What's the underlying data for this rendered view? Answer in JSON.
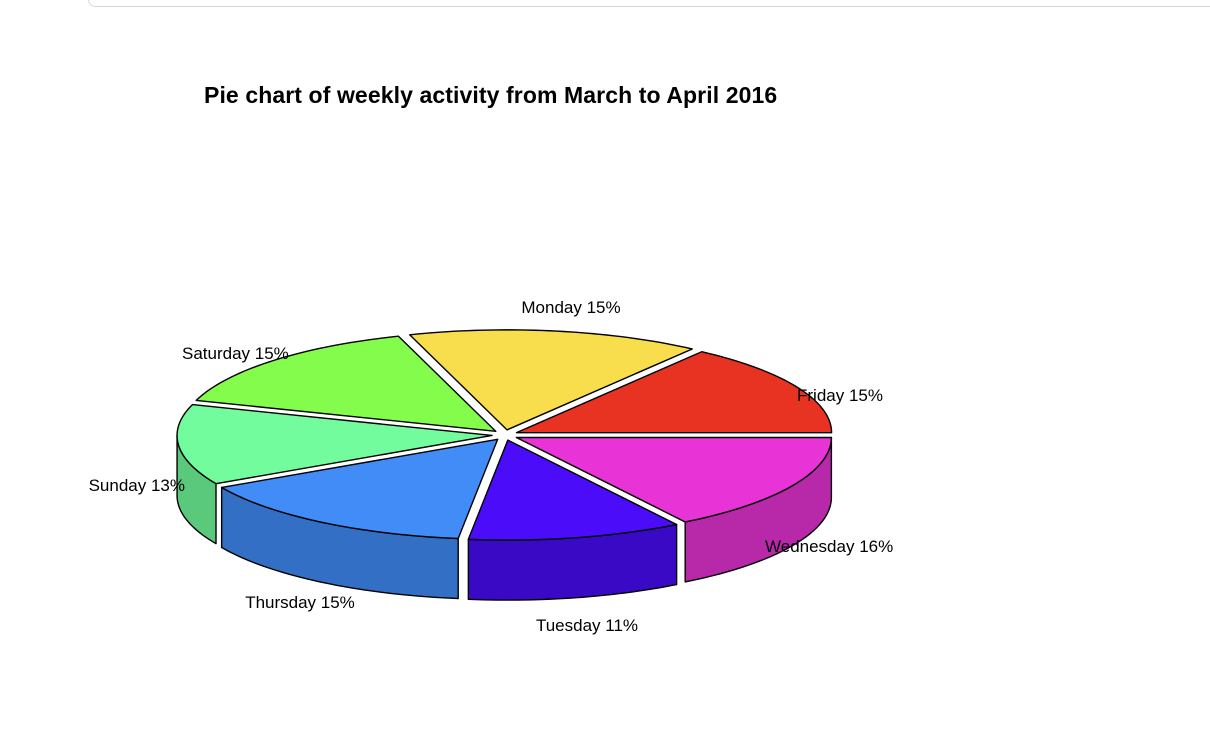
{
  "chart_data": {
    "type": "pie",
    "title": "Pie chart of weekly activity from March to April 2016",
    "labels": [
      "Friday",
      "Monday",
      "Saturday",
      "Sunday",
      "Thursday",
      "Tuesday",
      "Wednesday"
    ],
    "values": [
      15,
      15,
      15,
      13,
      15,
      11,
      16
    ],
    "label_text": [
      "Friday 15%",
      "Monday 15%",
      "Saturday 15%",
      "Sunday 13%",
      "Thursday 15%",
      "Tuesday 11%",
      "Wednesday 16%"
    ],
    "colors": [
      "#E93322",
      "#F8DD4D",
      "#83FC4C",
      "#73FC9D",
      "#418CF7",
      "#4A0CF9",
      "#E834D6"
    ],
    "side_colors": [
      "#B8281B",
      "#C5B03C",
      "#68C93C",
      "#5AC97C",
      "#3370C5",
      "#3A09C6",
      "#B829AA"
    ],
    "explode": true,
    "style": "3d"
  }
}
